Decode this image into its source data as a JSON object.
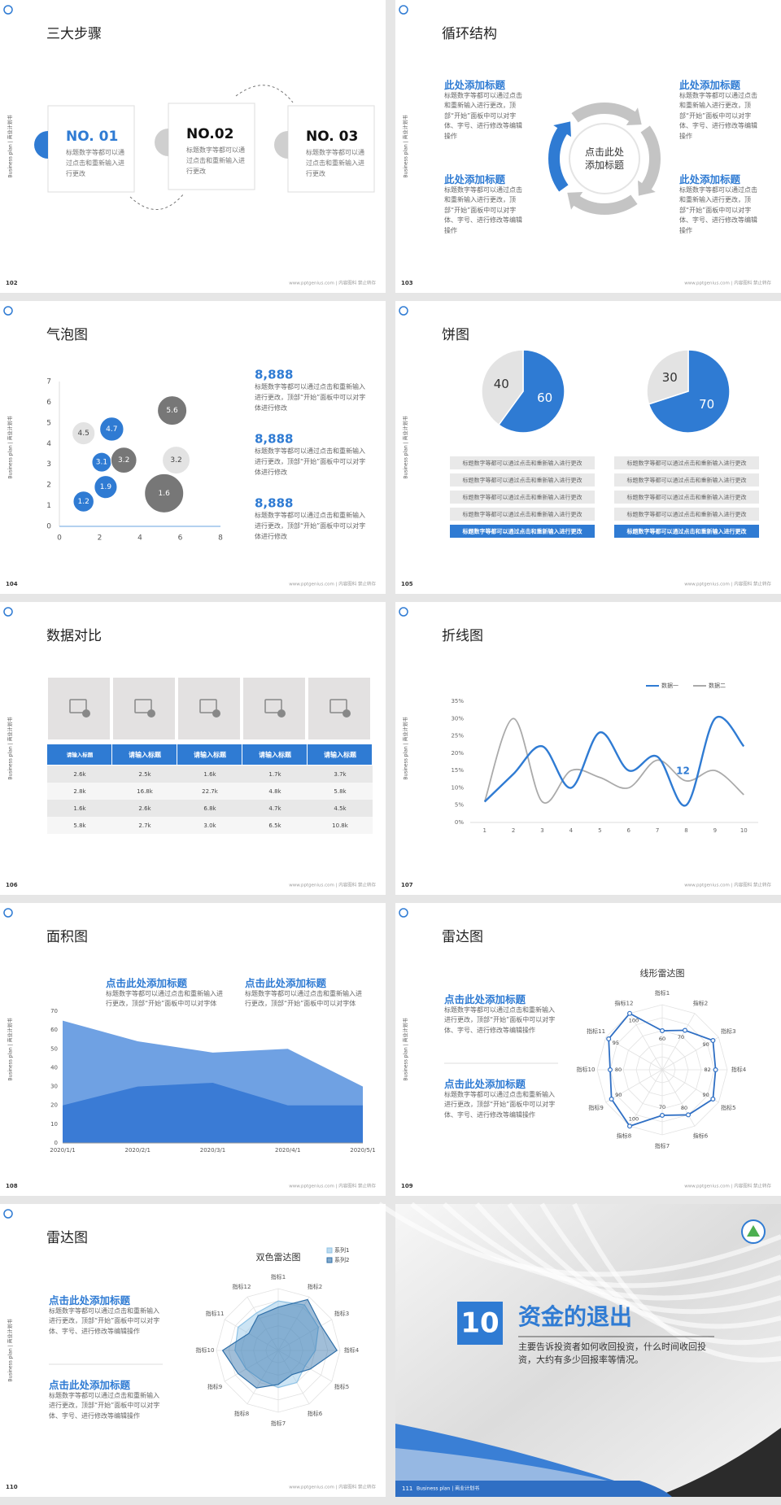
{
  "common": {
    "side_label": "Business plan | 商业计划书",
    "footer": "www.pptgenius.com | 内容图科 禁止转存"
  },
  "slides": [
    {
      "page": "102",
      "title": "三大步骤",
      "steps": [
        {
          "label": "NO. 01",
          "text": "标题数字等都可以通过点击和重新输入进行更改"
        },
        {
          "label": "NO.02",
          "text": "标题数字等都可以通过点击和重新输入进行更改"
        },
        {
          "label": "NO. 03",
          "text": "标题数字等都可以通过点击和重新输入进行更改"
        }
      ]
    },
    {
      "page": "103",
      "title": "循环结构",
      "center": "点击此处添加标题",
      "blocks": [
        {
          "title": "此处添加标题",
          "text": "标题数字等都可以通过点击和重新输入进行更改，顶部“开始”面板中可以对字体、字号、进行修改等编辑操作"
        },
        {
          "title": "此处添加标题",
          "text": "标题数字等都可以通过点击和重新输入进行更改，顶部“开始”面板中可以对字体、字号、进行修改等编辑操作"
        },
        {
          "title": "此处添加标题",
          "text": "标题数字等都可以通过点击和重新输入进行更改，顶部“开始”面板中可以对字体、字号、进行修改等编辑操作"
        },
        {
          "title": "此处添加标题",
          "text": "标题数字等都可以通过点击和重新输入进行更改，顶部“开始”面板中可以对字体、字号、进行修改等编辑操作"
        }
      ]
    },
    {
      "page": "104",
      "title": "气泡图",
      "chart": {
        "type": "bubble",
        "xlim": [
          0,
          8
        ],
        "ylim": [
          0,
          7
        ],
        "xticks": [
          0,
          2,
          4,
          6,
          8
        ],
        "yticks": [
          0,
          1,
          2,
          3,
          4,
          5,
          6,
          7
        ],
        "series": [
          {
            "color": "#2f7bd3",
            "label_color": "#ffffff",
            "x": [
              1.2,
              2.3,
              2.1,
              2.6
            ],
            "values": [
              1.2,
              1.9,
              3.1,
              4.7
            ],
            "sizes": [
              4.5,
              5.5,
              4,
              6
            ]
          },
          {
            "color": "#e3e3e3",
            "label_color": "#444444",
            "x": [
              1.2,
              5.8
            ],
            "values": [
              4.5,
              3.2
            ],
            "sizes": [
              5.5,
              8
            ]
          },
          {
            "color": "#777777",
            "label_color": "#ffffff",
            "x": [
              3.2,
              5.6,
              5.2
            ],
            "values": [
              3.2,
              5.6,
              1.6
            ],
            "sizes": [
              7,
              9,
              16
            ]
          }
        ]
      },
      "stats": [
        {
          "value": "8,888",
          "text": "标题数字等都可以通过点击和重新输入进行更改，顶部“开始”面板中可以对字体进行修改"
        },
        {
          "value": "8,888",
          "text": "标题数字等都可以通过点击和重新输入进行更改，顶部“开始”面板中可以对字体进行修改"
        },
        {
          "value": "8,888",
          "text": "标题数字等都可以通过点击和重新输入进行更改，顶部“开始”面板中可以对字体进行修改"
        }
      ]
    },
    {
      "page": "105",
      "title": "饼图",
      "pies": [
        {
          "type": "pie",
          "values": [
            60,
            40
          ],
          "colors": [
            "#2f7bd3",
            "#e3e3e3"
          ],
          "highlight": 4,
          "items": [
            "标题数字等都可以通过点击和重新输入进行更改",
            "标题数字等都可以通过点击和重新输入进行更改",
            "标题数字等都可以通过点击和重新输入进行更改",
            "标题数字等都可以通过点击和重新输入进行更改",
            "标题数字等都可以通过点击和重新输入进行更改"
          ]
        },
        {
          "type": "pie",
          "values": [
            70,
            30
          ],
          "colors": [
            "#2f7bd3",
            "#e3e3e3"
          ],
          "highlight": 4,
          "items": [
            "标题数字等都可以通过点击和重新输入进行更改",
            "标题数字等都可以通过点击和重新输入进行更改",
            "标题数字等都可以通过点击和重新输入进行更改",
            "标题数字等都可以通过点击和重新输入进行更改",
            "标题数字等都可以通过点击和重新输入进行更改"
          ]
        }
      ]
    },
    {
      "page": "106",
      "title": "数据对比",
      "table": {
        "header": [
          "请输入标题",
          "请输入标题",
          "请输入标题",
          "请输入标题",
          "请输入标题"
        ],
        "rows": [
          [
            "2.6k",
            "2.5k",
            "1.6k",
            "1.7k",
            "3.7k"
          ],
          [
            "2.8k",
            "16.8k",
            "22.7k",
            "4.8k",
            "5.8k"
          ],
          [
            "1.6k",
            "2.6k",
            "6.8k",
            "4.7k",
            "4.5k"
          ],
          [
            "5.8k",
            "2.7k",
            "3.0k",
            "6.5k",
            "10.8k"
          ]
        ]
      }
    },
    {
      "page": "107",
      "title": "折线图",
      "chart": {
        "type": "line",
        "x": [
          1,
          2,
          3,
          4,
          5,
          6,
          7,
          8,
          9,
          10
        ],
        "xlim": [
          0.5,
          10.5
        ],
        "ylim": [
          0,
          35
        ],
        "yticks": [
          {
            "value": 0,
            "label": "0%"
          },
          {
            "value": 5,
            "label": "5%"
          },
          {
            "value": 10,
            "label": "10%"
          },
          {
            "value": 15,
            "label": "15%"
          },
          {
            "value": 20,
            "label": "20%"
          },
          {
            "value": 25,
            "label": "25%"
          },
          {
            "value": 30,
            "label": "30%"
          },
          {
            "value": 35,
            "label": "35%"
          }
        ],
        "annotation": "12",
        "series": [
          {
            "name": "数据一",
            "color": "#2f7bd3",
            "values": [
              6,
              14,
              22,
              10,
              26,
              15,
              19,
              5,
              30,
              22
            ]
          },
          {
            "name": "数据二",
            "color": "#aaaaaa",
            "values": [
              6,
              30,
              6,
              15,
              13,
              10,
              18,
              12,
              15,
              8
            ]
          }
        ]
      }
    },
    {
      "page": "108",
      "title": "面积图",
      "blocks": [
        {
          "title": "点击此处添加标题",
          "text": "标题数字等都可以通过点击和重新输入进行更改，顶部“开始”面板中可以对字体"
        },
        {
          "title": "点击此处添加标题",
          "text": "标题数字等都可以通过点击和重新输入进行更改，顶部“开始”面板中可以对字体"
        }
      ],
      "chart": {
        "type": "area",
        "categories": [
          "2020/1/1",
          "2020/2/1",
          "2020/3/1",
          "2020/4/1",
          "2020/5/1"
        ],
        "ylim": [
          0,
          70
        ],
        "yticks": [
          0,
          10,
          20,
          30,
          40,
          50,
          60,
          70
        ],
        "series": [
          {
            "color": "#6fa1e3",
            "values": [
              65,
              54,
              48,
              50,
              30
            ]
          },
          {
            "color": "#3a7bd5",
            "values": [
              20,
              30,
              32,
              20,
              20
            ]
          }
        ]
      }
    },
    {
      "page": "109",
      "title": "雷达图",
      "blocks": [
        {
          "title": "点击此处添加标题",
          "text": "标题数字等都可以通过点击和重新输入进行更改，顶部“开始”面板中可以对字体、字号、进行修改等编辑操作"
        },
        {
          "title": "点击此处添加标题",
          "text": "标题数字等都可以通过点击和重新输入进行更改，顶部“开始”面板中可以对字体、字号、进行修改等编辑操作"
        }
      ],
      "chart": {
        "type": "radar",
        "title": "线形雷达图",
        "rlim": [
          0,
          100
        ],
        "data_labels": true,
        "categories": [
          "指标1",
          "指标2",
          "指标3",
          "指标4",
          "指标5",
          "指标6",
          "指标7",
          "指标8",
          "指标9",
          "指标10",
          "指标11",
          "指标12"
        ],
        "series": [
          {
            "color": "#2f6fc4",
            "values": [
              60,
              70,
              90,
              82,
              90,
              80,
              70,
              100,
              90,
              80,
              95,
              100
            ]
          }
        ]
      }
    },
    {
      "page": "110",
      "title": "雷达图",
      "blocks": [
        {
          "title": "点击此处添加标题",
          "text": "标题数字等都可以通过点击和重新输入进行更改，顶部“开始”面板中可以对字体、字号、进行修改等编辑操作"
        },
        {
          "title": "点击此处添加标题",
          "text": "标题数字等都可以通过点击和重新输入进行更改，顶部“开始”面板中可以对字体、字号、进行修改等编辑操作"
        }
      ],
      "chart": {
        "type": "radar",
        "title": "双色雷达图",
        "rlim": [
          0,
          100
        ],
        "data_labels": false,
        "categories": [
          "指标1",
          "指标2",
          "指标3",
          "指标4",
          "指标5",
          "指标6",
          "指标7",
          "指标8",
          "指标9",
          "指标10",
          "指标11",
          "指标12"
        ],
        "series": [
          {
            "name": "系列1",
            "color": "#8fc3e6",
            "values": [
              80,
              85,
              75,
              60,
              50,
              60,
              60,
              55,
              60,
              70,
              75,
              70
            ]
          },
          {
            "name": "系列2",
            "color": "#2f6fa8",
            "values": [
              70,
              95,
              80,
              95,
              60,
              45,
              55,
              70,
              75,
              90,
              55,
              65
            ]
          }
        ]
      }
    },
    {
      "page": "111",
      "number": "10",
      "title": "资金的退出",
      "text": "主要告诉投资者如何收回投资，什么时间收回投资，大约有多少回报率等情况。"
    }
  ]
}
